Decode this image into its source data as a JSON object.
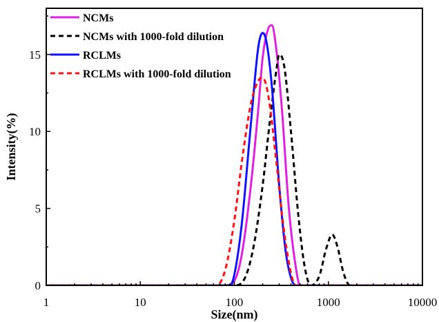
{
  "chart_data": {
    "type": "line",
    "xlabel": "Size(nm)",
    "ylabel": "Intensity(%)",
    "xscale": "log",
    "xlim": [
      1,
      10000
    ],
    "ylim": [
      0,
      18
    ],
    "xticks": [
      1,
      10,
      100,
      1000,
      10000
    ],
    "xtick_labels": [
      "1",
      "10",
      "100",
      "1000",
      "10000"
    ],
    "yticks": [
      0,
      5,
      10,
      15
    ],
    "ytick_labels": [
      "0",
      "5",
      "10",
      "15"
    ],
    "grid": false,
    "legend_position": "top-left",
    "series": [
      {
        "name": "NCMs",
        "color": "#e020e0",
        "dash": "solid",
        "x": [
          1,
          80,
          100,
          120,
          150,
          180,
          200,
          230,
          250,
          280,
          320,
          380,
          450,
          500,
          10000
        ],
        "y": [
          0,
          0,
          0.3,
          2.0,
          6.5,
          11.5,
          14.8,
          16.7,
          16.9,
          15.3,
          11.5,
          5.0,
          1.2,
          0,
          0
        ]
      },
      {
        "name": "NCMs with 1000-fold dilution",
        "color": "#000000",
        "dash": "dashed",
        "x": [
          1,
          100,
          130,
          160,
          200,
          240,
          280,
          300,
          340,
          400,
          480,
          560,
          650,
          800,
          950,
          1100,
          1250,
          1450,
          1700,
          10000
        ],
        "y": [
          0,
          0,
          0.5,
          2.5,
          6.5,
          10.8,
          14.0,
          15.0,
          14.2,
          10.0,
          4.5,
          1.2,
          0,
          0.6,
          2.4,
          3.3,
          2.5,
          0.8,
          0,
          0
        ]
      },
      {
        "name": "RCLMs",
        "color": "#1010ff",
        "dash": "solid",
        "x": [
          1,
          90,
          100,
          120,
          150,
          180,
          200,
          220,
          250,
          300,
          350,
          400,
          450,
          10000
        ],
        "y": [
          0,
          0,
          0.7,
          4.0,
          10.5,
          15.5,
          16.4,
          15.8,
          13.0,
          6.5,
          2.3,
          0.5,
          0,
          0
        ]
      },
      {
        "name": "RCLMs with 1000-fold dilution",
        "color": "#ff1010",
        "dash": "dashed",
        "x": [
          1,
          65,
          80,
          100,
          120,
          150,
          180,
          200,
          230,
          280,
          330,
          400,
          450,
          10000
        ],
        "y": [
          0,
          0,
          1.0,
          4.2,
          8.0,
          11.8,
          13.3,
          13.5,
          12.3,
          8.0,
          4.0,
          0.8,
          0,
          0
        ]
      }
    ]
  }
}
